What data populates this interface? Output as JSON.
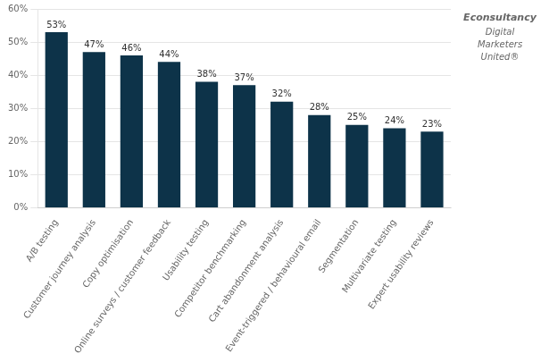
{
  "chart_data": {
    "type": "bar",
    "categories": [
      "A/B testing",
      "Customer journey analysis",
      "Copy optimisation",
      "Online surveys / customer feedback",
      "Usability testing",
      "Competitor benchmarking",
      "Cart abandonment analysis",
      "Event-triggered / behavioural email",
      "Segmentation",
      "Multivariate testing",
      "Expert usability reviews"
    ],
    "values": [
      53,
      47,
      46,
      44,
      38,
      37,
      32,
      28,
      25,
      24,
      23
    ],
    "value_labels": [
      "53%",
      "47%",
      "46%",
      "44%",
      "38%",
      "37%",
      "32%",
      "28%",
      "25%",
      "24%",
      "23%"
    ],
    "data_labels": true,
    "color": "#0d3349",
    "ylim": [
      0,
      60
    ],
    "yticks": [
      {
        "value": 0,
        "label": "0%"
      },
      {
        "value": 10,
        "label": "10%"
      },
      {
        "value": 20,
        "label": "20%"
      },
      {
        "value": 30,
        "label": "30%"
      },
      {
        "value": 40,
        "label": "40%"
      },
      {
        "value": 50,
        "label": "50%"
      },
      {
        "value": 60,
        "label": "60%"
      }
    ],
    "grid": true,
    "annotations": [
      "Econsultancy",
      "Digital",
      "Marketers",
      "United®"
    ]
  }
}
